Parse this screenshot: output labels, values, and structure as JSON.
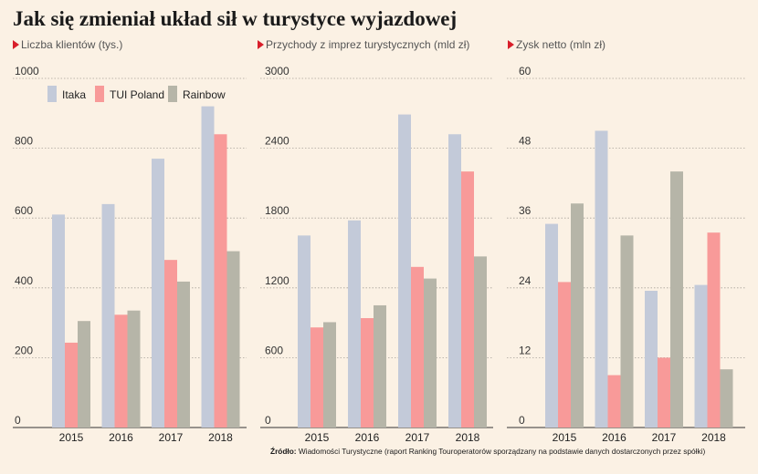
{
  "title": "Jak się zmieniał układ sił w turystyce wyjazdowej",
  "source": {
    "label": "Źródło:",
    "text": "Wiadomości Turystyczne (raport Ranking Touroperatorów sporządzany na podstawie danych dostarczonych przez spółki)"
  },
  "colors": {
    "itaka": "#c3cad9",
    "tui": "#f89a99",
    "rainbow": "#b6b5a8",
    "background": "#fbf1e4",
    "marker": "#d81e2a"
  },
  "chart_data": [
    {
      "type": "bar",
      "title": "Liczba klientów (tys.)",
      "categories": [
        "2015",
        "2016",
        "2017",
        "2018"
      ],
      "series": [
        {
          "name": "Itaka",
          "values": [
            610,
            640,
            770,
            920
          ]
        },
        {
          "name": "TUI Poland",
          "values": [
            243,
            323,
            480,
            840
          ]
        },
        {
          "name": "Rainbow",
          "values": [
            305,
            335,
            418,
            505
          ]
        }
      ],
      "ylim": [
        0,
        1000
      ],
      "yticks": [
        0,
        200,
        400,
        600,
        800,
        1000
      ],
      "grid": true,
      "legend": "top-left"
    },
    {
      "type": "bar",
      "title": "Przychody z imprez turystycznych (mld zł)",
      "categories": [
        "2015",
        "2016",
        "2017",
        "2018"
      ],
      "series": [
        {
          "name": "Itaka",
          "values": [
            1650,
            1780,
            2690,
            2520
          ]
        },
        {
          "name": "TUI Poland",
          "values": [
            860,
            940,
            1380,
            2200
          ]
        },
        {
          "name": "Rainbow",
          "values": [
            905,
            1050,
            1280,
            1470
          ]
        }
      ],
      "ylim": [
        0,
        3000
      ],
      "yticks": [
        0,
        600,
        1200,
        1800,
        2400,
        3000
      ],
      "grid": true
    },
    {
      "type": "bar",
      "title": "Zysk netto (mln zł)",
      "categories": [
        "2015",
        "2016",
        "2017",
        "2018"
      ],
      "series": [
        {
          "name": "Itaka",
          "values": [
            35,
            51,
            23.5,
            24.5
          ]
        },
        {
          "name": "TUI Poland",
          "values": [
            25,
            9,
            12,
            33.5
          ]
        },
        {
          "name": "Rainbow",
          "values": [
            38.5,
            33,
            44,
            10
          ]
        }
      ],
      "ylim": [
        0,
        60
      ],
      "yticks": [
        0,
        12,
        24,
        36,
        48,
        60
      ],
      "grid": true
    }
  ]
}
